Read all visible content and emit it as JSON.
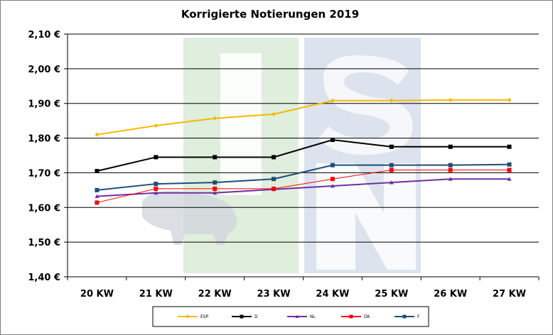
{
  "chart_data": {
    "type": "line",
    "title": "Korrigierte Notierungen 2019",
    "categories": [
      "20 KW",
      "21 KW",
      "22 KW",
      "23 KW",
      "24 KW",
      "25 KW",
      "26 KW",
      "27 KW"
    ],
    "y_ticks": [
      "1,40 €",
      "1,50 €",
      "1,60 €",
      "1,70 €",
      "1,80 €",
      "1,90 €",
      "2,00 €",
      "2,10 €"
    ],
    "ylim": [
      1.4,
      2.1
    ],
    "grid": true,
    "legend_position": "bottom",
    "watermark_letters": [
      "I",
      "S",
      "N"
    ],
    "series": [
      {
        "name": "ESP",
        "color": "#f5b800",
        "marker": "diamond",
        "values": [
          1.81,
          1.836,
          1.857,
          1.869,
          1.908,
          1.908,
          1.91,
          1.91
        ]
      },
      {
        "name": "D",
        "color": "#000000",
        "marker": "square",
        "values": [
          1.705,
          1.745,
          1.745,
          1.745,
          1.795,
          1.775,
          1.775,
          1.775
        ]
      },
      {
        "name": "NL",
        "color": "#7030a0",
        "marker": "triangle",
        "values": [
          1.632,
          1.642,
          1.642,
          1.652,
          1.662,
          1.672,
          1.682,
          1.682
        ]
      },
      {
        "name": "DK",
        "color": "#ff0000",
        "marker": "square",
        "values": [
          1.614,
          1.654,
          1.654,
          1.654,
          1.682,
          1.708,
          1.708,
          1.708
        ]
      },
      {
        "name": "F",
        "color": "#1f4e79",
        "marker": "square",
        "values": [
          1.65,
          1.668,
          1.672,
          1.682,
          1.722,
          1.722,
          1.722,
          1.724
        ]
      }
    ]
  }
}
